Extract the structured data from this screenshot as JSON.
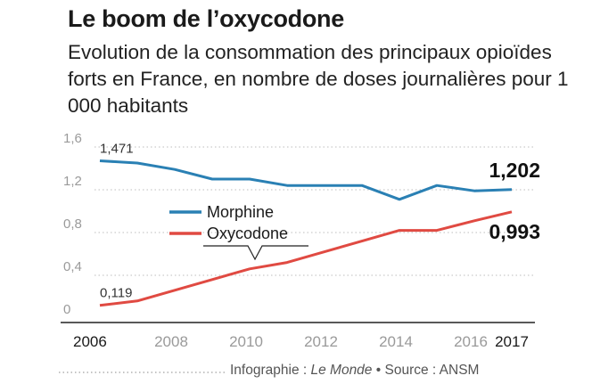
{
  "header": {
    "title": "Le boom de l’oxycodone",
    "subtitle": "Evolution de la consommation des principaux opioïdes forts en France, en nombre de doses journalières pour 1 000 habitants"
  },
  "footer": {
    "prefix": "Infographie : ",
    "publication": "Le Monde",
    "bullet": " • ",
    "source": "Source : ANSM"
  },
  "colors": {
    "morphine": "#2a80b4",
    "oxycodone": "#e04a42",
    "grid": "#bdbdbd",
    "axis": "#222222"
  },
  "chart_data": {
    "type": "line",
    "title": "Le boom de l’oxycodone",
    "subtitle": "Evolution de la consommation des principaux opioïdes forts en France, en nombre de doses journalières pour 1 000 habitants",
    "x": [
      2006,
      2007,
      2008,
      2009,
      2010,
      2011,
      2012,
      2013,
      2014,
      2015,
      2016,
      2017
    ],
    "x_ticks": [
      "2006",
      "2008",
      "2010",
      "2012",
      "2014",
      "2016",
      "2017"
    ],
    "x_ticks_strong": [
      "2006",
      "2017"
    ],
    "y_ticks": [
      "1,6",
      "1,2",
      "0,8",
      "0,4",
      "0"
    ],
    "y_tick_values": [
      1.6,
      1.2,
      0.8,
      0.4,
      0
    ],
    "ylim": [
      0,
      1.6
    ],
    "grid": true,
    "legend_position": "center-left",
    "series": [
      {
        "name": "Morphine",
        "color": "#2a80b4",
        "values": [
          1.471,
          1.45,
          1.39,
          1.3,
          1.3,
          1.24,
          1.24,
          1.24,
          1.11,
          1.24,
          1.19,
          1.202
        ],
        "start_label": "1,471",
        "end_label": "1,202"
      },
      {
        "name": "Oxycodone",
        "color": "#e04a42",
        "values": [
          0.119,
          0.16,
          0.26,
          0.36,
          0.46,
          0.52,
          0.62,
          0.72,
          0.82,
          0.82,
          0.91,
          0.993
        ],
        "start_label": "0,119",
        "end_label": "0,993"
      }
    ]
  }
}
